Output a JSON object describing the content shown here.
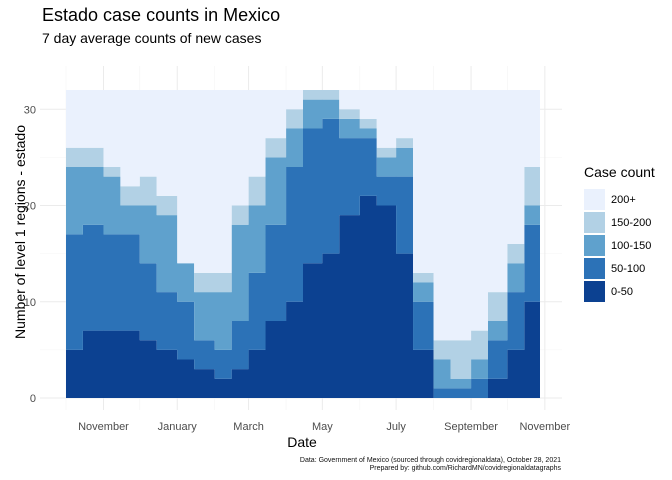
{
  "chart_data": {
    "type": "area",
    "title": "Estado case counts in Mexico",
    "subtitle": "7 day average counts of new cases",
    "xlabel": "Date",
    "ylabel": "Number of level 1 regions - estado",
    "ylim": [
      0,
      32
    ],
    "yticks": [
      0,
      10,
      20,
      30
    ],
    "xticks": [
      "November",
      "January",
      "March",
      "May",
      "July",
      "September",
      "November"
    ],
    "xlim": [
      "2020-10-01",
      "2021-10-28"
    ],
    "grid": true,
    "legend_position": "right",
    "legend_title": "Case count",
    "categories": [
      "200+",
      "150-200",
      "100-150",
      "50-100",
      "0-50"
    ],
    "colors": [
      "#eaf1fd",
      "#b2d1e5",
      "#5fa1cd",
      "#2c72b7",
      "#0c4191"
    ],
    "x": [
      "2020-10-01",
      "2020-10-15",
      "2020-11-01",
      "2020-11-15",
      "2020-12-01",
      "2020-12-15",
      "2021-01-01",
      "2021-01-15",
      "2021-02-01",
      "2021-02-15",
      "2021-03-01",
      "2021-03-15",
      "2021-04-01",
      "2021-04-15",
      "2021-05-01",
      "2021-05-15",
      "2021-06-01",
      "2021-06-15",
      "2021-07-01",
      "2021-07-15",
      "2021-08-01",
      "2021-08-15",
      "2021-09-01",
      "2021-09-15",
      "2021-10-01",
      "2021-10-15",
      "2021-10-28"
    ],
    "series": [
      {
        "name": "0-50",
        "values": [
          5,
          7,
          7,
          7,
          6,
          5,
          4,
          3,
          2,
          3,
          5,
          8,
          10,
          14,
          15,
          19,
          21,
          20,
          15,
          5,
          0,
          0,
          0,
          2,
          5,
          10,
          14
        ]
      },
      {
        "name": "50-100",
        "values": [
          12,
          11,
          10,
          10,
          8,
          6,
          6,
          3,
          3,
          5,
          8,
          10,
          14,
          14,
          14,
          8,
          6,
          3,
          8,
          5,
          1,
          1,
          2,
          4,
          6,
          8,
          8
        ]
      },
      {
        "name": "100-150",
        "values": [
          7,
          6,
          6,
          3,
          6,
          8,
          4,
          5,
          6,
          10,
          7,
          7,
          4,
          3,
          2,
          2,
          1,
          2,
          3,
          2,
          3,
          1,
          2,
          2,
          3,
          2,
          6
        ]
      },
      {
        "name": "150-200",
        "values": [
          2,
          2,
          1,
          2,
          3,
          2,
          0,
          2,
          2,
          2,
          3,
          2,
          2,
          1,
          1,
          1,
          1,
          1,
          1,
          1,
          2,
          4,
          3,
          3,
          2,
          4,
          1
        ]
      },
      {
        "name": "200+",
        "values": [
          6,
          6,
          8,
          10,
          9,
          11,
          18,
          19,
          19,
          12,
          9,
          5,
          2,
          0,
          0,
          2,
          3,
          6,
          5,
          19,
          26,
          26,
          25,
          21,
          16,
          8,
          3
        ]
      }
    ],
    "caption_lines": [
      "Data: Government of Mexico (sourced through covidregionaldata), October 28, 2021",
      "Prepared by: github.com/RichardMN/covidregionaldatagraphs"
    ]
  }
}
